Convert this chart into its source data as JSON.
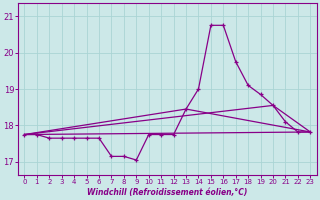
{
  "xlabel": "Windchill (Refroidissement éolien,°C)",
  "background_color": "#cce8e8",
  "grid_color": "#aad4d4",
  "line_color": "#880088",
  "xlim": [
    -0.5,
    23.5
  ],
  "ylim": [
    16.65,
    21.35
  ],
  "yticks": [
    17,
    18,
    19,
    20,
    21
  ],
  "xticks": [
    0,
    1,
    2,
    3,
    4,
    5,
    6,
    7,
    8,
    9,
    10,
    11,
    12,
    13,
    14,
    15,
    16,
    17,
    18,
    19,
    20,
    21,
    22,
    23
  ],
  "series1_x": [
    0,
    1,
    2,
    3,
    4,
    5,
    6,
    7,
    8,
    9,
    10,
    11,
    12,
    13,
    14,
    15,
    16,
    17,
    18,
    19,
    20,
    21,
    22,
    23
  ],
  "series1_y": [
    17.75,
    17.75,
    17.65,
    17.65,
    17.65,
    17.65,
    17.65,
    17.15,
    17.15,
    17.05,
    17.75,
    17.75,
    17.75,
    18.45,
    19.0,
    20.75,
    20.75,
    19.75,
    19.1,
    18.85,
    18.55,
    18.1,
    17.82,
    17.82
  ],
  "series2_x": [
    0,
    23
  ],
  "series2_y": [
    17.75,
    17.82
  ],
  "series3_x": [
    0,
    13,
    23
  ],
  "series3_y": [
    17.75,
    18.45,
    17.82
  ],
  "series4_x": [
    0,
    20,
    23
  ],
  "series4_y": [
    17.75,
    18.55,
    17.82
  ]
}
